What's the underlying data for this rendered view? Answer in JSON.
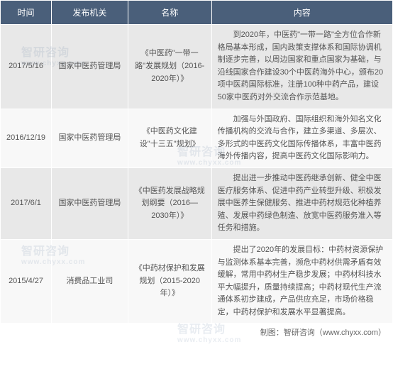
{
  "header": {
    "col1": "时间",
    "col2": "发布机关",
    "col3": "名称",
    "col4": "内容"
  },
  "rows": [
    {
      "time": "2017/5/16",
      "agency": "国家中医药管理局",
      "name": "《中医药\"一带一路\"发展规划（2016-2020年）》",
      "content": "到2020年，中医药\"一带一路\"全方位合作新格局基本形成，国内政策支撑体系和国际协调机制逐步完善，以周边国家和重点国家为基础，与沿线国家合作建设30个中医药海外中心，颁布20项中医药国际标准，注册100种中药产品，建设50家中医药对外交流合作示范基地。"
    },
    {
      "time": "2016/12/19",
      "agency": "国家中医药管理局",
      "name": "《中医药文化建设\"十三五\"规划》",
      "content": "加强与外国政府、国际组织和海外知名文化传播机构的交流与合作，建立多渠道、多层次、多形式的中医药文化国际传播体系，丰富中医药海外传播内容，提高中医药文化国际影响力。"
    },
    {
      "time": "2017/6/1",
      "agency": "国家中医药管理局",
      "name": "《中医药发展战略规划纲要（2016—2030年）》",
      "content": "提出进一步推动中医药继承创新、健全中医医疗服务体系、促进中药产业转型升级、积极发展中医养生保健服务、推进中药材规范化种植养殖、发展中药绿色制造、放宽中医药服务准入等任务和措施。"
    },
    {
      "time": "2015/4/27",
      "agency": "消费品工业司",
      "name": "《中药材保护和发展规划（2015-2020年）》",
      "content": "提出了2020年的发展目标：中药材资源保护与监测体系基本完善，濒危中药材供需矛盾有效缓解，常用中药材生产稳步发展；中药材科技水平大幅提升，质量持续提高；中药材现代生产流通体系初步建成，产品供应充足，市场价格稳定，中药材保护和发展水平显著提高。"
    }
  ],
  "footer": {
    "credit": "制图：智研咨询（www.chyxx.com）"
  },
  "watermark": "智研咨询",
  "watermark_sub": "www.chyxx.com"
}
